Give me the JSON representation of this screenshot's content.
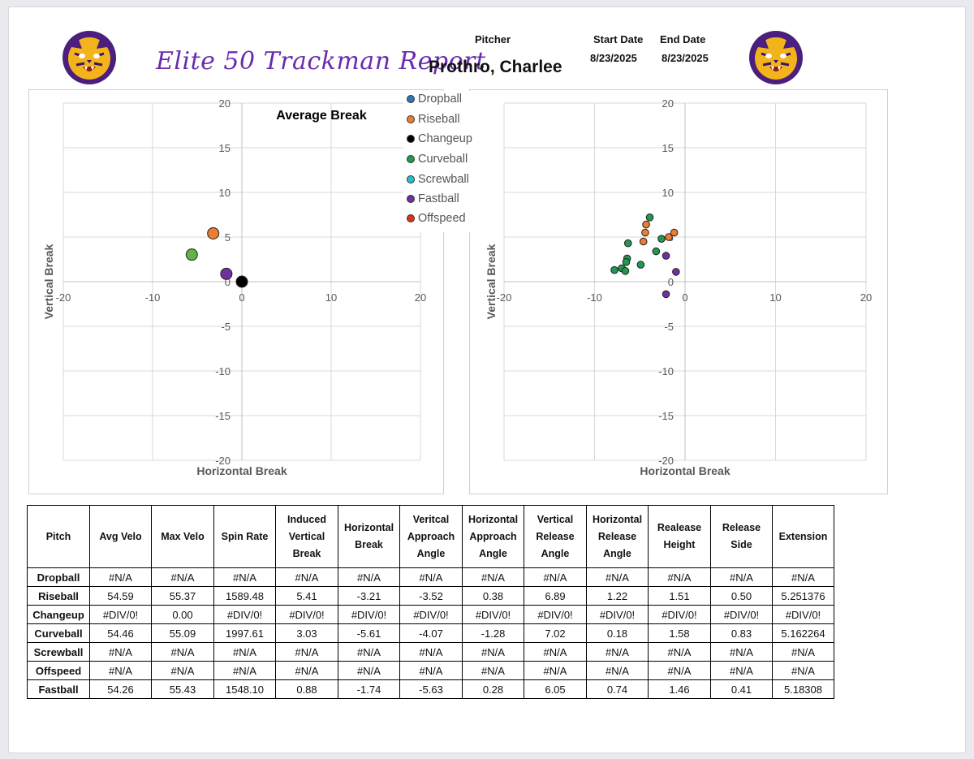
{
  "header": {
    "report_title": "Elite 50 Trackman Report",
    "pitcher_label": "Pitcher",
    "pitcher_name": "Prothro, Charlee",
    "start_label": "Start Date",
    "start_date": "8/23/2025",
    "end_label": "End Date",
    "end_date": "8/23/2025"
  },
  "legend": [
    {
      "label": "Dropball",
      "color": "#2e75b6"
    },
    {
      "label": "Riseball",
      "color": "#ed7d31"
    },
    {
      "label": "Changeup",
      "color": "#000000"
    },
    {
      "label": "Curveball",
      "color": "#1f9a4f"
    },
    {
      "label": "Screwball",
      "color": "#21c1c9"
    },
    {
      "label": "Fastball",
      "color": "#7030a0"
    },
    {
      "label": "Offspeed",
      "color": "#e03020"
    }
  ],
  "chart_data": [
    {
      "type": "scatter",
      "title": "Average Break",
      "xlabel": "Horizontal Break",
      "ylabel": "Vertical Break",
      "xlim": [
        -20,
        20
      ],
      "ylim": [
        -20,
        20
      ],
      "grid": true,
      "x_ticks": [
        "-20",
        "-10",
        "0",
        "10",
        "20"
      ],
      "y_ticks": [
        "20",
        "15",
        "10",
        "5",
        "0",
        "-5",
        "-10",
        "-15",
        "-20"
      ],
      "series": [
        {
          "name": "Riseball",
          "color": "#ed7d31",
          "points": [
            [
              -3.21,
              5.41
            ]
          ]
        },
        {
          "name": "Changeup",
          "color": "#000000",
          "points": [
            [
              0.0,
              0.0
            ]
          ]
        },
        {
          "name": "Curveball",
          "color": "#62b246",
          "points": [
            [
              -5.61,
              3.03
            ]
          ]
        },
        {
          "name": "Fastball",
          "color": "#7030a0",
          "points": [
            [
              -1.74,
              0.88
            ]
          ]
        }
      ]
    },
    {
      "type": "scatter",
      "title": "",
      "xlabel": "Horizontal Break",
      "ylabel": "Vertical Break",
      "xlim": [
        -20,
        20
      ],
      "ylim": [
        -20,
        20
      ],
      "grid": true,
      "x_ticks": [
        "-20",
        "-10",
        "0",
        "10",
        "20"
      ],
      "y_ticks": [
        "20",
        "15",
        "10",
        "5",
        "0",
        "-5",
        "-10",
        "-15",
        "-20"
      ],
      "series": [
        {
          "name": "Riseball",
          "color": "#ed7d31",
          "points": [
            [
              -4.3,
              6.4
            ],
            [
              -4.4,
              5.5
            ],
            [
              -4.6,
              4.5
            ],
            [
              -1.2,
              5.5
            ],
            [
              -1.8,
              5.0
            ]
          ]
        },
        {
          "name": "Curveball",
          "color": "#1f9a4f",
          "points": [
            [
              -3.9,
              7.2
            ],
            [
              -2.6,
              4.8
            ],
            [
              -3.2,
              3.4
            ],
            [
              -4.9,
              1.9
            ],
            [
              -6.3,
              4.3
            ],
            [
              -6.4,
              2.6
            ],
            [
              -6.5,
              2.2
            ],
            [
              -7.0,
              1.5
            ],
            [
              -6.6,
              1.2
            ],
            [
              -7.8,
              1.3
            ]
          ]
        },
        {
          "name": "Fastball",
          "color": "#7030a0",
          "points": [
            [
              -2.1,
              2.9
            ],
            [
              -1.0,
              1.1
            ],
            [
              -2.1,
              -1.4
            ]
          ]
        }
      ]
    }
  ],
  "table": {
    "headers": [
      "Pitch",
      "Avg Velo",
      "Max Velo",
      "Spin Rate",
      "Induced Vertical Break",
      "Horizontal Break",
      "Veritcal Approach Angle",
      "Horizontal Approach Angle",
      "Vertical Release Angle",
      "Horizontal Release Angle",
      "Realease Height",
      "Release Side",
      "Extension"
    ],
    "rows": [
      [
        "Dropball",
        "#N/A",
        "#N/A",
        "#N/A",
        "#N/A",
        "#N/A",
        "#N/A",
        "#N/A",
        "#N/A",
        "#N/A",
        "#N/A",
        "#N/A",
        "#N/A"
      ],
      [
        "Riseball",
        "54.59",
        "55.37",
        "1589.48",
        "5.41",
        "-3.21",
        "-3.52",
        "0.38",
        "6.89",
        "1.22",
        "1.51",
        "0.50",
        "5.251376"
      ],
      [
        "Changeup",
        "#DIV/0!",
        "0.00",
        "#DIV/0!",
        "#DIV/0!",
        "#DIV/0!",
        "#DIV/0!",
        "#DIV/0!",
        "#DIV/0!",
        "#DIV/0!",
        "#DIV/0!",
        "#DIV/0!",
        "#DIV/0!"
      ],
      [
        "Curveball",
        "54.46",
        "55.09",
        "1997.61",
        "3.03",
        "-5.61",
        "-4.07",
        "-1.28",
        "7.02",
        "0.18",
        "1.58",
        "0.83",
        "5.162264"
      ],
      [
        "Screwball",
        "#N/A",
        "#N/A",
        "#N/A",
        "#N/A",
        "#N/A",
        "#N/A",
        "#N/A",
        "#N/A",
        "#N/A",
        "#N/A",
        "#N/A",
        "#N/A"
      ],
      [
        "Offspeed",
        "#N/A",
        "#N/A",
        "#N/A",
        "#N/A",
        "#N/A",
        "#N/A",
        "#N/A",
        "#N/A",
        "#N/A",
        "#N/A",
        "#N/A",
        "#N/A"
      ],
      [
        "Fastball",
        "54.26",
        "55.43",
        "1548.10",
        "0.88",
        "-1.74",
        "-5.63",
        "0.28",
        "6.05",
        "0.74",
        "1.46",
        "0.41",
        "5.18308"
      ]
    ]
  }
}
